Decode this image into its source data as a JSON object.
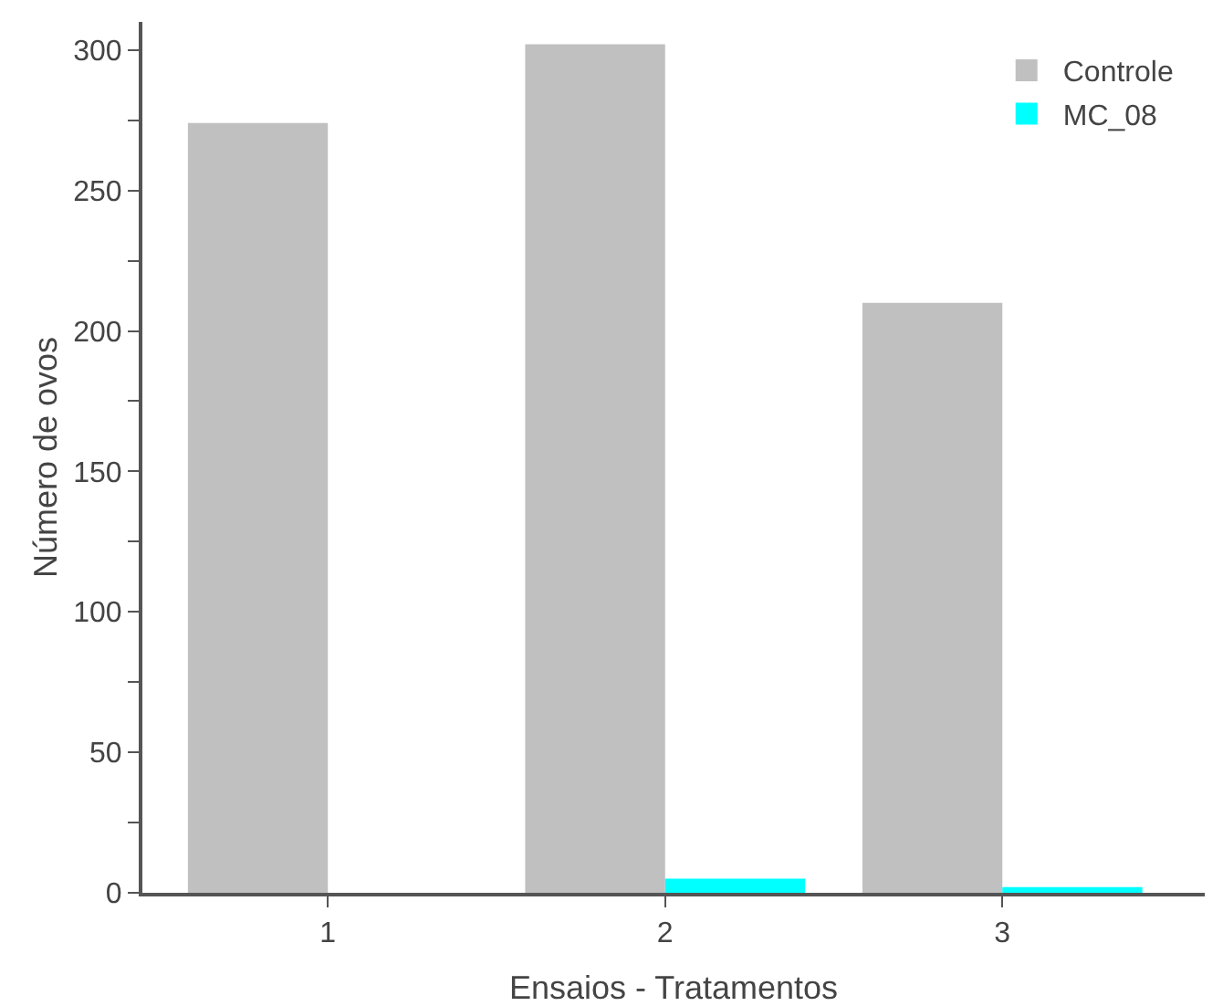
{
  "chart_data": {
    "type": "bar",
    "xlabel": "Ensaios - Tratamentos",
    "ylabel": "Número de ovos",
    "categories": [
      "1",
      "2",
      "3"
    ],
    "series": [
      {
        "name": "Controle",
        "color": "#c0c0c0",
        "values": [
          274,
          302,
          210
        ]
      },
      {
        "name": "MC_08",
        "color": "#00ffff",
        "values": [
          0,
          5,
          2
        ]
      }
    ],
    "ylim": [
      0,
      310
    ],
    "yticks": [
      0,
      {
        "value": 25,
        "label": null
      },
      50,
      {
        "value": 75,
        "label": null
      },
      100,
      {
        "value": 125,
        "label": null
      },
      150,
      {
        "value": 175,
        "label": null
      },
      200,
      {
        "value": 225,
        "label": null
      },
      250,
      {
        "value": 275,
        "label": null
      },
      300
    ],
    "grid": false,
    "legend": "top right"
  }
}
